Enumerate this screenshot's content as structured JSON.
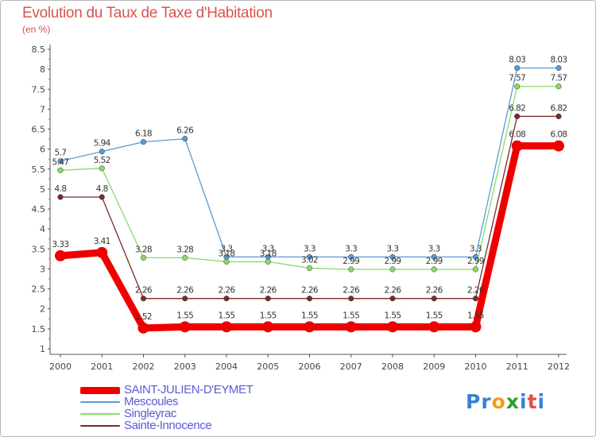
{
  "title": "Evolution du Taux de Taxe d'Habitation",
  "unit": "(en %)",
  "logo": {
    "letters": [
      "P",
      "r",
      "o",
      "x",
      "i",
      "t",
      "i"
    ],
    "colors": [
      "#3a7fd5",
      "#3a7fd5",
      "#f39c12",
      "#2e9e2e",
      "#3a7fd5",
      "#e74c3c",
      "#3a7fd5"
    ]
  },
  "chart_data": {
    "type": "line",
    "title": "Evolution du Taux de Taxe d'Habitation",
    "ylabel": "(en %)",
    "x": [
      "2000",
      "2001",
      "2002",
      "2003",
      "2004",
      "2005",
      "2006",
      "2007",
      "2008",
      "2009",
      "2010",
      "2011",
      "2012"
    ],
    "ylim": [
      1,
      8.5
    ],
    "yticks": [
      "1",
      "1.5",
      "2",
      "2.5",
      "3",
      "3.5",
      "4",
      "4.5",
      "5",
      "5.5",
      "6",
      "6.5",
      "7",
      "7.5",
      "8",
      "8.5"
    ],
    "grid": false,
    "series": [
      {
        "name": "SAINT-JULIEN-D'EYMET",
        "color": "#ee0000",
        "width": 9,
        "values": [
          3.33,
          3.41,
          1.52,
          1.55,
          1.55,
          1.55,
          1.55,
          1.55,
          1.55,
          1.55,
          1.55,
          6.08,
          6.08
        ],
        "labels": [
          "3.33",
          "3.41",
          "1.52",
          "1.55",
          "1.55",
          "1.55",
          "1.55",
          "1.55",
          "1.55",
          "1.55",
          "1.55",
          "6.08",
          "6.08"
        ]
      },
      {
        "name": "Mescoules",
        "color": "#5b9bd5",
        "width": 1.3,
        "values": [
          5.7,
          5.94,
          6.18,
          6.26,
          3.3,
          3.3,
          3.3,
          3.3,
          3.3,
          3.3,
          3.3,
          8.03,
          8.03
        ],
        "labels": [
          "5.7",
          "5.94",
          "6.18",
          "6.26",
          "3.3",
          "3.3",
          "3.3",
          "3.3",
          "3.3",
          "3.3",
          "3.3",
          "8.03",
          "8.03"
        ]
      },
      {
        "name": "Singleyrac",
        "color": "#8cd96a",
        "width": 1.3,
        "values": [
          5.47,
          5.52,
          3.28,
          3.28,
          3.18,
          3.18,
          3.02,
          2.99,
          2.99,
          2.99,
          2.99,
          7.57,
          7.57
        ],
        "labels": [
          "5.47",
          "5.52",
          "3.28",
          "3.28",
          "3.18",
          "3.18",
          "3.02",
          "2.99",
          "2.99",
          "2.99",
          "2.99",
          "7.57",
          "7.57"
        ]
      },
      {
        "name": "Sainte-Innocence",
        "color": "#7b2a2a",
        "width": 1.3,
        "values": [
          4.8,
          4.8,
          2.26,
          2.26,
          2.26,
          2.26,
          2.26,
          2.26,
          2.26,
          2.26,
          2.26,
          6.82,
          6.82
        ],
        "labels": [
          "4.8",
          "4.8",
          "2.26",
          "2.26",
          "2.26",
          "2.26",
          "2.26",
          "2.26",
          "2.26",
          "2.26",
          "2.26",
          "6.82",
          "6.82"
        ]
      }
    ]
  }
}
